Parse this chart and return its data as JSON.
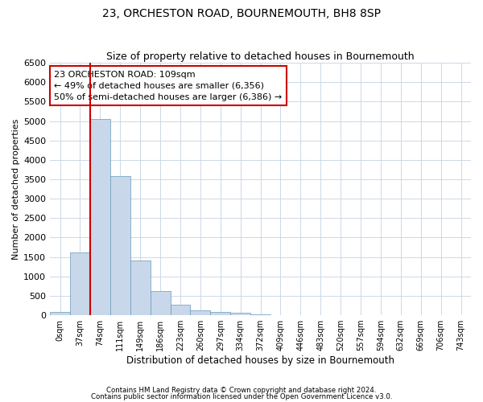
{
  "title": "23, ORCHESTON ROAD, BOURNEMOUTH, BH8 8SP",
  "subtitle": "Size of property relative to detached houses in Bournemouth",
  "xlabel": "Distribution of detached houses by size in Bournemouth",
  "ylabel": "Number of detached properties",
  "bar_color": "#c8d8ea",
  "bar_edge_color": "#6699bb",
  "categories": [
    "0sqm",
    "37sqm",
    "74sqm",
    "111sqm",
    "149sqm",
    "186sqm",
    "223sqm",
    "260sqm",
    "297sqm",
    "334sqm",
    "372sqm",
    "409sqm",
    "446sqm",
    "483sqm",
    "520sqm",
    "557sqm",
    "594sqm",
    "632sqm",
    "669sqm",
    "706sqm",
    "743sqm"
  ],
  "values": [
    75,
    1620,
    5050,
    3580,
    1400,
    630,
    270,
    130,
    90,
    55,
    28,
    12,
    6,
    4,
    2,
    1,
    1,
    0,
    0,
    0,
    0
  ],
  "ylim": [
    0,
    6500
  ],
  "yticks": [
    0,
    500,
    1000,
    1500,
    2000,
    2500,
    3000,
    3500,
    4000,
    4500,
    5000,
    5500,
    6000,
    6500
  ],
  "vline_color": "#cc0000",
  "annotation_text": "23 ORCHESTON ROAD: 109sqm\n← 49% of detached houses are smaller (6,356)\n50% of semi-detached houses are larger (6,386) →",
  "annotation_box_color": "#ffffff",
  "annotation_box_edge": "#cc0000",
  "footer1": "Contains HM Land Registry data © Crown copyright and database right 2024.",
  "footer2": "Contains public sector information licensed under the Open Government Licence v3.0.",
  "bg_color": "#ffffff",
  "grid_color": "#ccd8e8"
}
